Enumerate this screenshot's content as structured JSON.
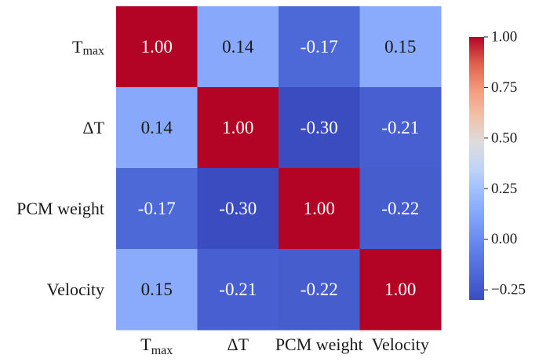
{
  "chart_data": {
    "type": "heatmap",
    "title": "",
    "row_labels": [
      {
        "base": "T",
        "sub": "max"
      },
      {
        "base": "ΔT",
        "sub": ""
      },
      {
        "base": "PCM weight",
        "sub": ""
      },
      {
        "base": "Velocity",
        "sub": ""
      }
    ],
    "col_labels": [
      {
        "base": "T",
        "sub": "max"
      },
      {
        "base": "ΔT",
        "sub": ""
      },
      {
        "base": "PCM weight",
        "sub": ""
      },
      {
        "base": "Velocity",
        "sub": ""
      }
    ],
    "values": [
      [
        1.0,
        0.14,
        -0.17,
        0.15
      ],
      [
        0.14,
        1.0,
        -0.3,
        -0.21
      ],
      [
        -0.17,
        -0.3,
        1.0,
        -0.22
      ],
      [
        0.15,
        -0.21,
        -0.22,
        1.0
      ]
    ],
    "value_labels": [
      [
        "1.00",
        "0.14",
        "-0.17",
        "0.15"
      ],
      [
        "0.14",
        "1.00",
        "-0.30",
        "-0.21"
      ],
      [
        "-0.17",
        "-0.30",
        "1.00",
        "-0.22"
      ],
      [
        "0.15",
        "-0.21",
        "-0.22",
        "1.00"
      ]
    ],
    "colormap": "coolwarm",
    "color_range": [
      -0.3,
      1.0
    ],
    "colorbar": {
      "ticks": [
        1.0,
        0.75,
        0.5,
        0.25,
        0.0,
        -0.25
      ],
      "tick_labels": [
        "1.00",
        "0.75",
        "0.50",
        "0.25",
        "0.00",
        "−0.25"
      ],
      "position": "right"
    }
  }
}
